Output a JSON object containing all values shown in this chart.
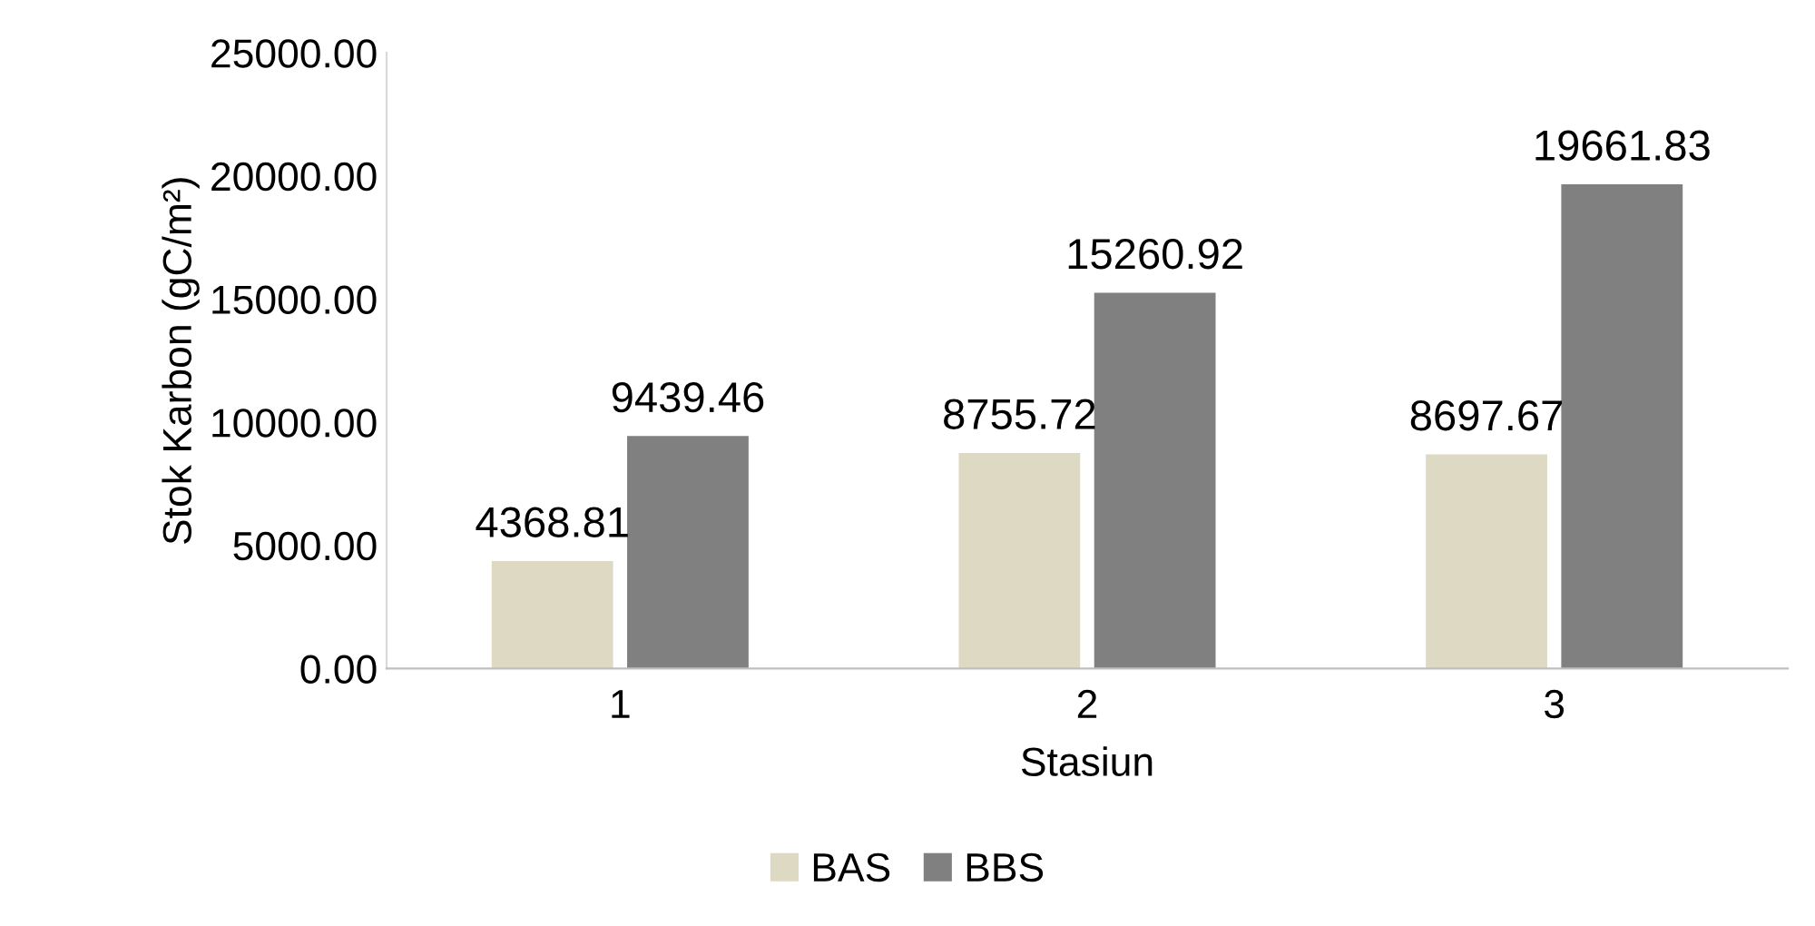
{
  "chart_data": {
    "type": "bar",
    "xlabel": "Stasiun",
    "ylabel": "Stok Karbon (gC/m²)",
    "categories": [
      "1",
      "2",
      "3"
    ],
    "series": [
      {
        "name": "BAS",
        "color": "#ddd9c3",
        "values": [
          4368.81,
          8755.72,
          8697.67
        ]
      },
      {
        "name": "BBS",
        "color": "#808080",
        "values": [
          9439.46,
          15260.92,
          19661.83
        ]
      }
    ],
    "ylim": [
      0,
      25000
    ],
    "yticks": [
      {
        "value": 0,
        "label": "0.00"
      },
      {
        "value": 5000,
        "label": "5000.00"
      },
      {
        "value": 10000,
        "label": "10000.00"
      },
      {
        "value": 15000,
        "label": "15000.00"
      },
      {
        "value": 20000,
        "label": "20000.00"
      },
      {
        "value": 25000,
        "label": "25000.00"
      }
    ],
    "data_labels": true,
    "grid": false,
    "legend": "bottom"
  }
}
